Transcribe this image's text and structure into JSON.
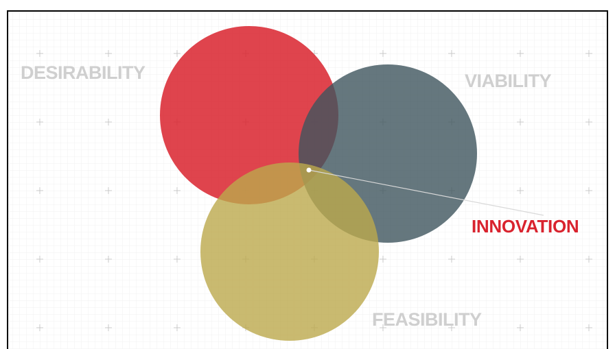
{
  "diagram": {
    "labels": {
      "desirability": "DESIRABILITY",
      "viability": "VIABILITY",
      "feasibility": "FEASIBILITY",
      "innovation": "INNOVATION"
    }
  }
}
